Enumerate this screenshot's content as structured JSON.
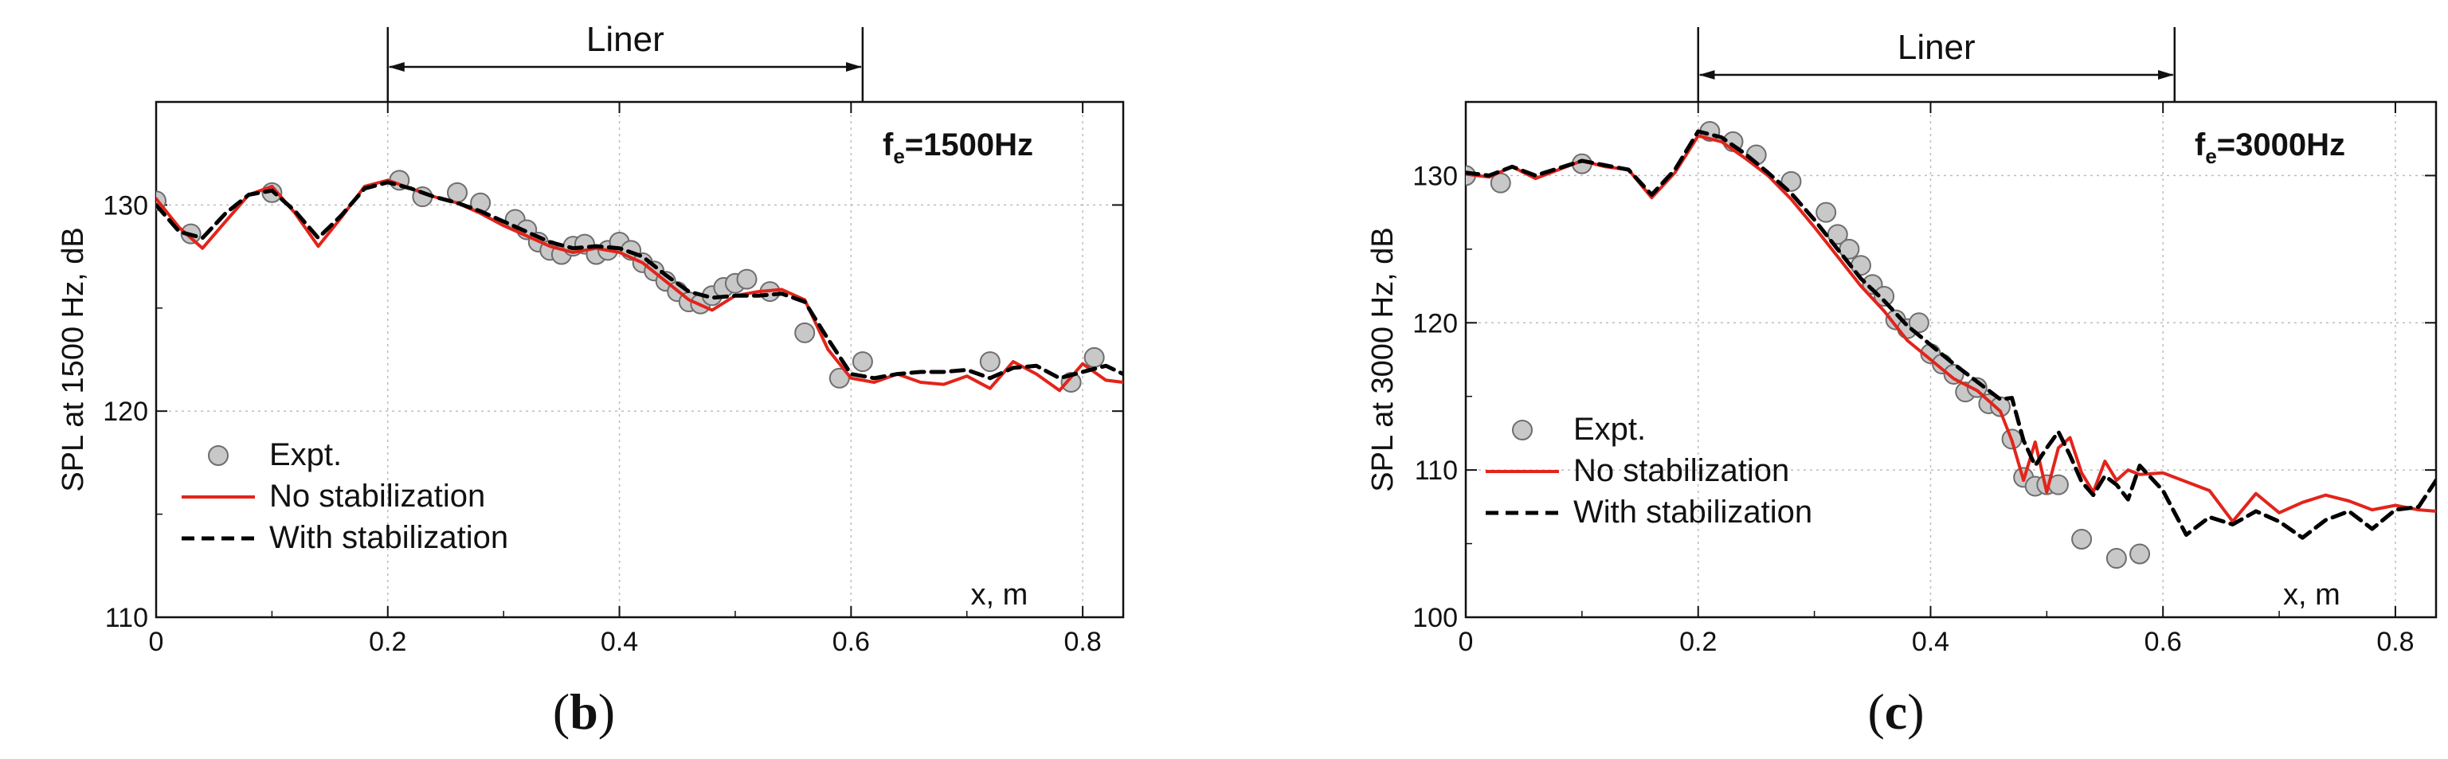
{
  "chart_data": [
    {
      "panel_open": "(",
      "panel_letter": "b",
      "panel_close": ")",
      "type": "line",
      "ylabel": "SPL at 1500 Hz, dB",
      "xlabel": "x, m",
      "xlim": [
        0,
        0.835
      ],
      "ylim": [
        110,
        135
      ],
      "xticks": [
        "0",
        "0.2",
        "0.4",
        "0.6",
        "0.8"
      ],
      "xtick_values": [
        0,
        0.2,
        0.4,
        0.6,
        0.8
      ],
      "yticks": [
        "110",
        "120",
        "130"
      ],
      "ytick_values": [
        110,
        120,
        130
      ],
      "grid": true,
      "annotation_main": "f",
      "annotation_sub": "e",
      "annotation_rest": "=1500Hz",
      "liner": {
        "label": "Liner",
        "x_start": 0.2,
        "x_end": 0.61
      },
      "legend": {
        "placement": "bottom-left",
        "entries": [
          "Expt.",
          "No stabilization",
          "With stabilization"
        ]
      },
      "series": [
        {
          "name": "Expt.",
          "kind": "scatter",
          "color": "#c8c8c8",
          "x": [
            0.0,
            0.03,
            0.1,
            0.21,
            0.23,
            0.26,
            0.28,
            0.31,
            0.32,
            0.33,
            0.34,
            0.35,
            0.36,
            0.37,
            0.38,
            0.39,
            0.4,
            0.41,
            0.42,
            0.43,
            0.44,
            0.45,
            0.46,
            0.47,
            0.48,
            0.49,
            0.5,
            0.51,
            0.53,
            0.56,
            0.59,
            0.61,
            0.72,
            0.79,
            0.81
          ],
          "y": [
            130.2,
            128.6,
            130.6,
            131.2,
            130.4,
            130.6,
            130.1,
            129.3,
            128.8,
            128.2,
            127.8,
            127.6,
            128.0,
            128.1,
            127.6,
            127.8,
            128.2,
            127.8,
            127.2,
            126.8,
            126.3,
            125.8,
            125.3,
            125.2,
            125.6,
            126.0,
            126.2,
            126.4,
            125.8,
            123.8,
            121.6,
            122.4,
            122.4,
            121.4,
            122.6
          ]
        },
        {
          "name": "No stabilization",
          "kind": "line",
          "color": "#e2241b",
          "x": [
            0.0,
            0.02,
            0.04,
            0.06,
            0.08,
            0.1,
            0.12,
            0.14,
            0.16,
            0.18,
            0.2,
            0.22,
            0.24,
            0.26,
            0.28,
            0.3,
            0.32,
            0.34,
            0.36,
            0.38,
            0.4,
            0.42,
            0.44,
            0.46,
            0.48,
            0.5,
            0.52,
            0.54,
            0.56,
            0.58,
            0.6,
            0.62,
            0.64,
            0.66,
            0.68,
            0.7,
            0.72,
            0.74,
            0.76,
            0.78,
            0.8,
            0.82,
            0.835
          ],
          "y": [
            130.3,
            128.9,
            127.9,
            129.2,
            130.5,
            130.9,
            129.6,
            128.0,
            129.4,
            130.9,
            131.2,
            130.8,
            130.4,
            130.1,
            129.6,
            129.0,
            128.5,
            128.0,
            127.7,
            127.9,
            127.7,
            127.2,
            126.3,
            125.4,
            124.9,
            125.6,
            125.8,
            125.9,
            125.4,
            123.0,
            121.6,
            121.4,
            121.8,
            121.4,
            121.3,
            121.7,
            121.1,
            122.4,
            121.8,
            121.0,
            122.3,
            121.5,
            121.4
          ]
        },
        {
          "name": "With stabilization",
          "kind": "line",
          "color": "#000000",
          "x": [
            0.0,
            0.02,
            0.04,
            0.06,
            0.08,
            0.1,
            0.12,
            0.14,
            0.16,
            0.18,
            0.2,
            0.22,
            0.24,
            0.26,
            0.28,
            0.3,
            0.32,
            0.34,
            0.36,
            0.38,
            0.4,
            0.42,
            0.44,
            0.46,
            0.48,
            0.5,
            0.52,
            0.54,
            0.56,
            0.58,
            0.6,
            0.62,
            0.64,
            0.66,
            0.68,
            0.7,
            0.72,
            0.74,
            0.76,
            0.78,
            0.8,
            0.82,
            0.835
          ],
          "y": [
            130.0,
            128.7,
            128.4,
            129.6,
            130.5,
            130.7,
            129.7,
            128.4,
            129.5,
            130.8,
            131.1,
            130.8,
            130.4,
            130.1,
            129.7,
            129.2,
            128.7,
            128.2,
            127.9,
            128.0,
            127.9,
            127.5,
            126.6,
            125.8,
            125.5,
            125.6,
            125.6,
            125.7,
            125.3,
            123.5,
            121.8,
            121.6,
            121.8,
            121.9,
            121.9,
            122.0,
            121.6,
            122.1,
            122.2,
            121.6,
            121.9,
            122.2,
            121.8
          ]
        }
      ]
    },
    {
      "panel_open": "(",
      "panel_letter": "c",
      "panel_close": ")",
      "type": "line",
      "ylabel": "SPL at 3000 Hz, dB",
      "xlabel": "x, m",
      "xlim": [
        0,
        0.835
      ],
      "ylim": [
        100,
        135
      ],
      "xticks": [
        "0",
        "0.2",
        "0.4",
        "0.6",
        "0.8"
      ],
      "xtick_values": [
        0,
        0.2,
        0.4,
        0.6,
        0.8
      ],
      "yticks": [
        "100",
        "110",
        "120",
        "130"
      ],
      "ytick_values": [
        100,
        110,
        120,
        130
      ],
      "grid": true,
      "annotation_main": "f",
      "annotation_sub": "e",
      "annotation_rest": "=3000Hz",
      "liner": {
        "label": "Liner",
        "x_start": 0.2,
        "x_end": 0.61
      },
      "legend": {
        "placement": "bottom-left",
        "entries": [
          "Expt.",
          "No stabilization",
          "With stabilization"
        ]
      },
      "series": [
        {
          "name": "Expt.",
          "kind": "scatter",
          "color": "#c8c8c8",
          "x": [
            0.0,
            0.03,
            0.1,
            0.21,
            0.23,
            0.25,
            0.28,
            0.31,
            0.32,
            0.33,
            0.34,
            0.35,
            0.36,
            0.37,
            0.38,
            0.39,
            0.4,
            0.41,
            0.42,
            0.43,
            0.44,
            0.45,
            0.46,
            0.47,
            0.48,
            0.49,
            0.5,
            0.51,
            0.53,
            0.56,
            0.58
          ],
          "y": [
            130.0,
            129.5,
            130.8,
            133.0,
            132.3,
            131.4,
            129.6,
            127.5,
            126.0,
            125.0,
            123.9,
            122.6,
            121.8,
            120.2,
            119.6,
            120.0,
            117.9,
            117.2,
            116.5,
            115.3,
            115.6,
            114.5,
            114.3,
            112.1,
            109.5,
            108.9,
            109.0,
            109.0,
            105.3,
            104.0,
            104.3
          ]
        },
        {
          "name": "No stabilization",
          "kind": "line",
          "color": "#e2241b",
          "x": [
            0.0,
            0.02,
            0.04,
            0.06,
            0.08,
            0.1,
            0.12,
            0.14,
            0.16,
            0.18,
            0.2,
            0.22,
            0.24,
            0.26,
            0.28,
            0.3,
            0.32,
            0.34,
            0.36,
            0.38,
            0.4,
            0.42,
            0.44,
            0.46,
            0.47,
            0.48,
            0.49,
            0.5,
            0.51,
            0.52,
            0.53,
            0.54,
            0.55,
            0.56,
            0.57,
            0.58,
            0.6,
            0.62,
            0.64,
            0.66,
            0.68,
            0.7,
            0.72,
            0.74,
            0.76,
            0.78,
            0.8,
            0.82,
            0.835
          ],
          "y": [
            130.1,
            129.9,
            130.6,
            129.8,
            130.4,
            131.0,
            130.6,
            130.4,
            128.5,
            130.2,
            132.7,
            132.3,
            131.2,
            130.0,
            128.4,
            126.5,
            124.5,
            122.5,
            120.8,
            118.8,
            117.5,
            116.2,
            115.4,
            114.0,
            112.0,
            109.3,
            111.9,
            108.5,
            111.5,
            112.2,
            109.8,
            108.5,
            110.6,
            109.3,
            110.0,
            109.7,
            109.8,
            109.2,
            108.6,
            106.5,
            108.4,
            107.1,
            107.8,
            108.3,
            107.9,
            107.3,
            107.6,
            107.3,
            107.2
          ]
        },
        {
          "name": "With stabilization",
          "kind": "line",
          "color": "#000000",
          "x": [
            0.0,
            0.02,
            0.04,
            0.06,
            0.08,
            0.1,
            0.12,
            0.14,
            0.16,
            0.18,
            0.2,
            0.22,
            0.24,
            0.26,
            0.28,
            0.3,
            0.32,
            0.34,
            0.36,
            0.38,
            0.4,
            0.42,
            0.44,
            0.46,
            0.47,
            0.48,
            0.49,
            0.5,
            0.51,
            0.52,
            0.53,
            0.54,
            0.55,
            0.56,
            0.57,
            0.58,
            0.6,
            0.62,
            0.64,
            0.66,
            0.68,
            0.7,
            0.72,
            0.74,
            0.76,
            0.78,
            0.8,
            0.82,
            0.835
          ],
          "y": [
            130.2,
            130.0,
            130.6,
            130.0,
            130.5,
            131.0,
            130.7,
            130.4,
            128.7,
            130.4,
            133.0,
            132.6,
            131.5,
            130.2,
            128.8,
            127.0,
            125.0,
            123.0,
            121.5,
            119.8,
            118.5,
            117.2,
            116.0,
            114.8,
            114.9,
            112.0,
            110.3,
            111.5,
            112.6,
            111.0,
            109.2,
            108.3,
            109.6,
            109.0,
            108.0,
            110.3,
            108.6,
            105.6,
            106.8,
            106.3,
            107.2,
            106.5,
            105.4,
            106.6,
            107.2,
            106.0,
            107.3,
            107.5,
            109.3
          ]
        }
      ]
    }
  ]
}
